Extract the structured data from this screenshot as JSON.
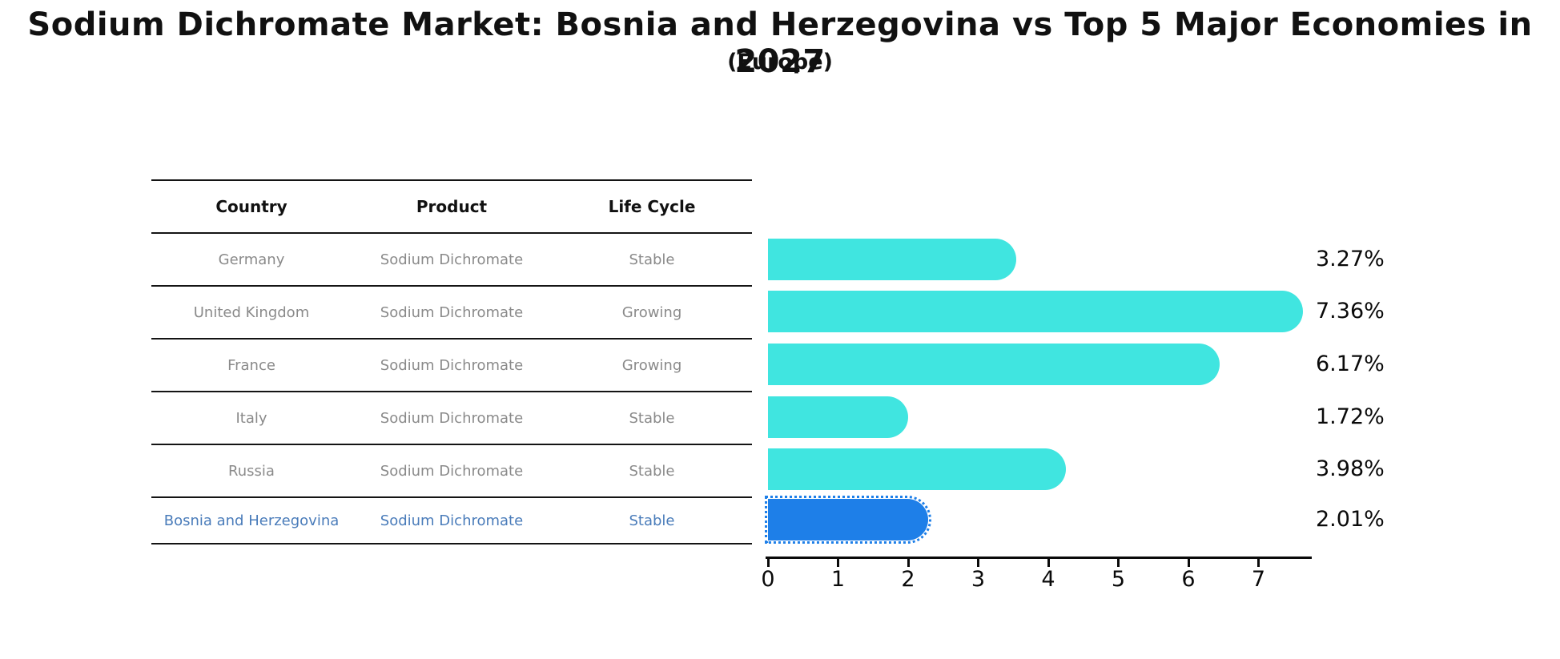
{
  "title": "Sodium Dichromate Market: Bosnia and Herzegovina vs Top 5 Major Economies in 2027",
  "subtitle": "(Europe)",
  "colors": {
    "bar_default": "#40E5E0",
    "bar_highlight": "#1E7FE8",
    "highlight_text": "#4A7CBA",
    "row_text": "#8A8A8A",
    "line": "#141414"
  },
  "table": {
    "headers": [
      "Country",
      "Product",
      "Life Cycle"
    ],
    "rows": [
      {
        "country": "Germany",
        "product": "Sodium Dichromate",
        "life_cycle": "Stable"
      },
      {
        "country": "United Kingdom",
        "product": "Sodium Dichromate",
        "life_cycle": "Growing"
      },
      {
        "country": "France",
        "product": "Sodium Dichromate",
        "life_cycle": "Growing"
      },
      {
        "country": "Italy",
        "product": "Sodium Dichromate",
        "life_cycle": "Stable"
      },
      {
        "country": "Russia",
        "product": "Sodium Dichromate",
        "life_cycle": "Stable"
      },
      {
        "country": "Bosnia and Herzegovina",
        "product": "Sodium Dichromate",
        "life_cycle": "Stable"
      }
    ]
  },
  "chart_data": {
    "type": "bar",
    "orientation": "horizontal",
    "title": "Sodium Dichromate Market: Bosnia and Herzegovina vs Top 5 Major Economies in 2027",
    "subtitle": "(Europe)",
    "categories": [
      "Germany",
      "United Kingdom",
      "France",
      "Italy",
      "Russia",
      "Bosnia and Herzegovina"
    ],
    "values": [
      3.27,
      7.36,
      6.17,
      1.72,
      3.98,
      2.01
    ],
    "labels": [
      "3.27%",
      "7.36%",
      "6.17%",
      "1.72%",
      "3.98%",
      "2.01%"
    ],
    "value_suffix": "%",
    "highlight_index": 5,
    "x_ticks": [
      "0",
      "1",
      "2",
      "3",
      "4",
      "5",
      "6",
      "7"
    ],
    "xlim": [
      0,
      7.75
    ],
    "xlabel": "",
    "ylabel": "",
    "grid": "off",
    "legend": "none"
  }
}
